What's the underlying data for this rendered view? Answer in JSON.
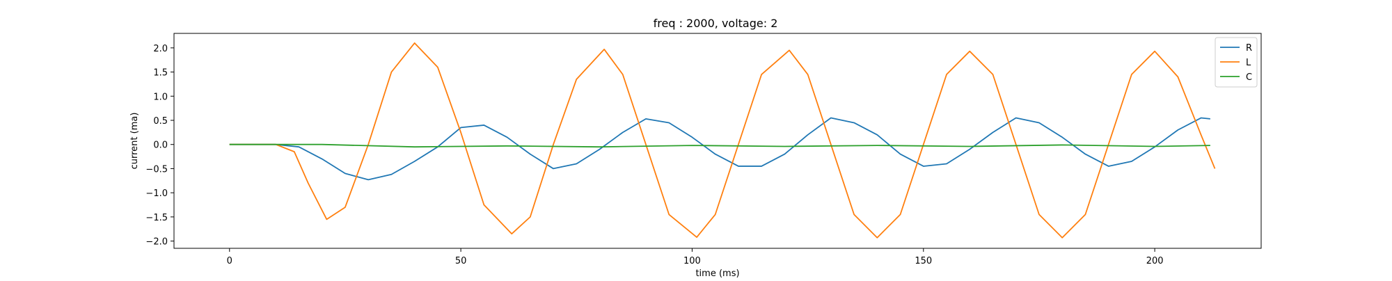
{
  "chart_data": {
    "type": "line",
    "title": "freq : 2000, voltage: 2",
    "xlabel": "time (ms)",
    "ylabel": "current (ma)",
    "xlim": [
      -12,
      223
    ],
    "ylim": [
      -2.15,
      2.3
    ],
    "xticks": [
      0,
      50,
      100,
      150,
      200
    ],
    "yticks": [
      -2.0,
      -1.5,
      -1.0,
      -0.5,
      0.0,
      0.5,
      1.0,
      1.5,
      2.0
    ],
    "xtick_labels": [
      "0",
      "50",
      "100",
      "150",
      "200"
    ],
    "ytick_labels": [
      "−2.0",
      "−1.5",
      "−1.0",
      "−0.5",
      "0.0",
      "0.5",
      "1.0",
      "1.5",
      "2.0"
    ],
    "grid": false,
    "legend_position": "top-right",
    "series": [
      {
        "name": "R",
        "color": "#1f77b4",
        "x": [
          0,
          10,
          15,
          20,
          25,
          30,
          35,
          40,
          45,
          50,
          55,
          60,
          65,
          70,
          75,
          80,
          85,
          90,
          95,
          100,
          105,
          110,
          115,
          120,
          125,
          130,
          135,
          140,
          145,
          150,
          155,
          160,
          165,
          170,
          175,
          180,
          185,
          190,
          195,
          200,
          205,
          210,
          212
        ],
        "values": [
          0,
          0,
          -0.05,
          -0.3,
          -0.6,
          -0.73,
          -0.62,
          -0.35,
          -0.05,
          0.35,
          0.4,
          0.15,
          -0.2,
          -0.5,
          -0.4,
          -0.1,
          0.25,
          0.53,
          0.45,
          0.15,
          -0.2,
          -0.45,
          -0.45,
          -0.2,
          0.2,
          0.55,
          0.45,
          0.2,
          -0.2,
          -0.45,
          -0.4,
          -0.1,
          0.25,
          0.55,
          0.45,
          0.15,
          -0.2,
          -0.45,
          -0.35,
          -0.05,
          0.3,
          0.55,
          0.53
        ]
      },
      {
        "name": "L",
        "color": "#ff7f0e",
        "x": [
          0,
          10,
          14,
          17,
          21,
          25,
          30,
          35,
          40,
          45,
          50,
          55,
          61,
          65,
          70,
          75,
          81,
          85,
          90,
          95,
          101,
          105,
          110,
          115,
          121,
          125,
          130,
          135,
          140,
          145,
          150,
          155,
          160,
          165,
          170,
          175,
          180,
          185,
          190,
          195,
          200,
          205,
          210,
          213
        ],
        "values": [
          0,
          0,
          -0.15,
          -0.8,
          -1.55,
          -1.3,
          0,
          1.5,
          2.1,
          1.6,
          0.25,
          -1.25,
          -1.85,
          -1.5,
          0,
          1.35,
          1.97,
          1.45,
          0,
          -1.45,
          -1.92,
          -1.45,
          0,
          1.45,
          1.95,
          1.45,
          0,
          -1.45,
          -1.93,
          -1.45,
          0,
          1.45,
          1.93,
          1.45,
          0,
          -1.45,
          -1.93,
          -1.45,
          0,
          1.45,
          1.93,
          1.4,
          0.2,
          -0.5
        ]
      },
      {
        "name": "C",
        "color": "#2ca02c",
        "x": [
          0,
          20,
          40,
          60,
          80,
          100,
          120,
          140,
          160,
          180,
          200,
          212
        ],
        "values": [
          0,
          0,
          -0.05,
          -0.03,
          -0.05,
          -0.02,
          -0.04,
          -0.02,
          -0.04,
          -0.01,
          -0.04,
          -0.02
        ]
      }
    ]
  }
}
